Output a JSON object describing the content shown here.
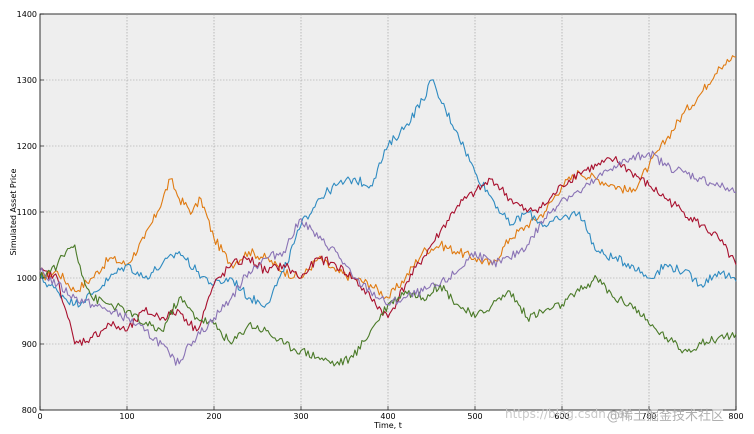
{
  "chart_data": {
    "type": "line",
    "title": "",
    "xlabel": "Time, t",
    "ylabel": "Simulated Asset Price",
    "xlim": [
      0,
      800
    ],
    "ylim": [
      800,
      1400
    ],
    "xticks": [
      0,
      100,
      200,
      300,
      400,
      500,
      600,
      700,
      800
    ],
    "xtick_labels": [
      "0",
      "100",
      "200",
      "300",
      "400",
      "500",
      "600",
      "700",
      "800"
    ],
    "yticks": [
      800,
      900,
      1000,
      1100,
      1200,
      1300,
      1400
    ],
    "ytick_labels": [
      "800",
      "900",
      "1000",
      "1100",
      "1200",
      "1300",
      "1400"
    ],
    "grid": true,
    "legend": "none",
    "background": "#eeeeee",
    "series": [
      {
        "color": "#e07b12",
        "x": [
          0,
          20,
          40,
          60,
          80,
          100,
          120,
          135,
          150,
          160,
          175,
          185,
          200,
          220,
          240,
          260,
          280,
          300,
          320,
          340,
          360,
          380,
          400,
          420,
          440,
          460,
          480,
          500,
          520,
          540,
          560,
          580,
          600,
          620,
          640,
          660,
          680,
          700,
          720,
          740,
          760,
          780,
          800
        ],
        "values": [
          1000,
          1010,
          980,
          1000,
          1030,
          1020,
          1060,
          1100,
          1150,
          1120,
          1100,
          1120,
          1060,
          1020,
          1040,
          1030,
          1010,
          1000,
          1030,
          1010,
          1000,
          990,
          970,
          1000,
          1040,
          1050,
          1040,
          1030,
          1020,
          1060,
          1080,
          1100,
          1140,
          1160,
          1150,
          1140,
          1130,
          1170,
          1210,
          1250,
          1280,
          1320,
          1335
        ]
      },
      {
        "color": "#2f8bc1",
        "x": [
          0,
          20,
          40,
          60,
          80,
          100,
          120,
          140,
          160,
          180,
          200,
          220,
          240,
          260,
          280,
          300,
          320,
          340,
          360,
          380,
          400,
          420,
          440,
          450,
          460,
          480,
          500,
          520,
          540,
          560,
          580,
          600,
          620,
          640,
          660,
          680,
          700,
          720,
          740,
          760,
          780,
          800
        ],
        "values": [
          1000,
          980,
          960,
          975,
          1000,
          1020,
          1000,
          1020,
          1040,
          1010,
          990,
          1000,
          970,
          960,
          1010,
          1080,
          1120,
          1140,
          1150,
          1140,
          1200,
          1230,
          1270,
          1300,
          1270,
          1220,
          1160,
          1120,
          1080,
          1100,
          1080,
          1090,
          1100,
          1040,
          1030,
          1020,
          1000,
          1020,
          1010,
          990,
          1010,
          995
        ]
      },
      {
        "color": "#a8102e",
        "x": [
          0,
          20,
          30,
          40,
          60,
          80,
          100,
          120,
          140,
          160,
          180,
          200,
          220,
          240,
          260,
          280,
          300,
          320,
          340,
          360,
          380,
          400,
          420,
          440,
          460,
          480,
          500,
          520,
          540,
          560,
          580,
          600,
          620,
          640,
          660,
          680,
          700,
          720,
          740,
          760,
          780,
          800
        ],
        "values": [
          1010,
          1000,
          950,
          900,
          910,
          930,
          920,
          950,
          940,
          950,
          920,
          990,
          1020,
          1030,
          1010,
          1020,
          1000,
          1030,
          1020,
          1000,
          970,
          940,
          990,
          1030,
          1070,
          1110,
          1130,
          1150,
          1120,
          1100,
          1110,
          1140,
          1160,
          1170,
          1180,
          1160,
          1140,
          1120,
          1100,
          1080,
          1060,
          1020
        ]
      },
      {
        "color": "#4a7a28",
        "x": [
          0,
          20,
          30,
          40,
          50,
          60,
          80,
          100,
          120,
          140,
          160,
          180,
          200,
          220,
          240,
          260,
          280,
          300,
          320,
          340,
          360,
          380,
          400,
          420,
          440,
          460,
          480,
          500,
          520,
          540,
          560,
          580,
          600,
          620,
          640,
          660,
          680,
          700,
          720,
          740,
          760,
          780,
          800
        ],
        "values": [
          1000,
          1020,
          1040,
          1050,
          1000,
          970,
          960,
          950,
          930,
          920,
          970,
          940,
          930,
          900,
          930,
          920,
          900,
          890,
          880,
          870,
          880,
          920,
          960,
          980,
          970,
          990,
          960,
          940,
          960,
          980,
          940,
          950,
          960,
          980,
          1000,
          970,
          960,
          930,
          910,
          890,
          900,
          910,
          915
        ]
      },
      {
        "color": "#8a73b5",
        "x": [
          0,
          20,
          40,
          60,
          80,
          100,
          120,
          140,
          150,
          160,
          170,
          180,
          200,
          220,
          240,
          260,
          280,
          300,
          320,
          340,
          360,
          380,
          400,
          420,
          440,
          460,
          480,
          500,
          520,
          540,
          560,
          580,
          600,
          620,
          640,
          660,
          680,
          700,
          720,
          740,
          760,
          780,
          800
        ],
        "values": [
          1010,
          990,
          970,
          960,
          950,
          940,
          920,
          900,
          880,
          870,
          900,
          910,
          940,
          970,
          1010,
          1030,
          1040,
          1090,
          1060,
          1040,
          1000,
          980,
          960,
          970,
          980,
          990,
          1010,
          1040,
          1020,
          1030,
          1050,
          1090,
          1120,
          1130,
          1150,
          1170,
          1180,
          1190,
          1170,
          1160,
          1150,
          1140,
          1130
        ]
      }
    ]
  },
  "watermark": {
    "text1": "https://blog.csdn.net",
    "text2": "@稀土掘金技术社区"
  }
}
